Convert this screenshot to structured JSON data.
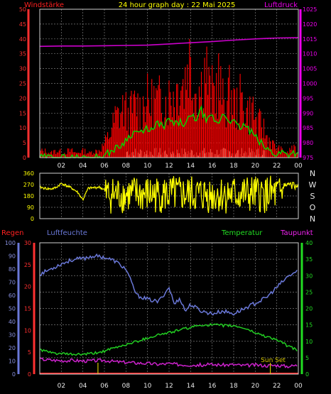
{
  "header": {
    "title": "24 hour graph day : 22 Mai 2025",
    "left_label": "Windstärke",
    "right_label": "Luftdruck"
  },
  "labels": {
    "regen": "Regen",
    "luftfeuchte": "Luftfeuchte",
    "temperatur": "Temperatur",
    "taupunkt": "Taupunkt",
    "sun_set": "Sun Set"
  },
  "colors": {
    "wind": "#ff0000",
    "gust_avg": "#00dd00",
    "wind_bg": "#c8f0c8",
    "pressure": "#cc00cc",
    "direction": "#ffff00",
    "humidity": "#6a78d8",
    "temperature": "#22cc22",
    "dewpoint": "#cc22cc",
    "rain": "#ff3030",
    "sunset": "#d4c400",
    "grid": "#7a7a7a",
    "title": "#ffff00"
  },
  "chart_data": [
    {
      "id": "wind-pressure",
      "type": "bar",
      "x_ticks": [
        "02",
        "04",
        "06",
        "08",
        "10",
        "12",
        "14",
        "16",
        "18",
        "20",
        "22",
        "00"
      ],
      "y_left_ticks": [
        "0",
        "5",
        "10",
        "15",
        "20",
        "25",
        "30",
        "35",
        "40",
        "45",
        "50"
      ],
      "y_left_range": [
        0,
        50
      ],
      "y_right_ticks": [
        "975",
        "980",
        "985",
        "990",
        "995",
        "1000",
        "1005",
        "1010",
        "1015",
        "1020",
        "1025"
      ],
      "y_right_range": [
        975,
        1025
      ],
      "series": [
        {
          "x": [
            0.2,
            0.6,
            1.0,
            1.4,
            1.8,
            2.2,
            2.6,
            3.0,
            3.4,
            3.8,
            4.2,
            4.6,
            5.0,
            5.4,
            5.8,
            6.2,
            6.6,
            7.0,
            7.4,
            7.8,
            8.2,
            8.6,
            9.0,
            9.4,
            9.8,
            10.2,
            10.6,
            11.0,
            11.4,
            11.8,
            12.2,
            12.6,
            13.0,
            13.4,
            13.8,
            14.2,
            14.6,
            15.0,
            15.4,
            15.8,
            16.2,
            16.6,
            17.0,
            17.4,
            17.8,
            18.2,
            18.6,
            19.0,
            19.4,
            19.8,
            20.2,
            20.6,
            21.0,
            21.4,
            21.8,
            22.2,
            22.6,
            23.0,
            23.4,
            23.8
          ],
          "values": [
            3,
            3,
            2,
            3,
            3,
            2,
            3,
            3,
            2,
            3,
            3,
            2,
            3,
            3,
            5,
            8,
            12,
            18,
            20,
            23,
            19,
            22,
            25,
            21,
            28,
            24,
            27,
            25,
            29,
            26,
            30,
            28,
            38,
            33,
            48,
            35,
            31,
            33,
            43,
            28,
            30,
            36,
            25,
            27,
            30,
            22,
            26,
            24,
            20,
            22,
            14,
            16,
            10,
            8,
            5,
            4,
            3,
            2,
            5,
            3
          ]
        },
        {
          "x": [
            0,
            1,
            2,
            3,
            4,
            5,
            6,
            6.5,
            7,
            7.5,
            8,
            8.5,
            9,
            9.5,
            10,
            10.5,
            11,
            11.5,
            12,
            12.5,
            13,
            13.5,
            14,
            14.5,
            15,
            15.5,
            16,
            16.5,
            17,
            17.5,
            18,
            18.5,
            19,
            19.5,
            20,
            20.5,
            21,
            21.5,
            22,
            22.5,
            23,
            23.5,
            24
          ],
          "values": [
            0,
            0,
            0,
            0,
            0,
            0,
            0.5,
            2,
            3,
            4,
            6,
            8,
            9,
            8,
            10,
            9,
            12,
            10,
            13,
            11,
            12,
            11,
            14,
            13,
            16,
            12,
            14,
            11,
            15,
            13,
            12,
            10,
            11,
            9,
            7,
            5,
            3,
            2,
            1,
            2,
            1,
            2,
            1
          ]
        },
        {
          "x": [
            0,
            2,
            4,
            6,
            8,
            10,
            12,
            14,
            16,
            18,
            20,
            22,
            24
          ],
          "values": [
            1012.5,
            1012.6,
            1012.6,
            1012.7,
            1012.8,
            1012.9,
            1013.3,
            1013.7,
            1014.1,
            1014.6,
            1015.0,
            1015.3,
            1015.4
          ]
        }
      ]
    },
    {
      "id": "wind-direction",
      "type": "line",
      "x_ticks": [
        "02",
        "04",
        "06",
        "08",
        "10",
        "12",
        "14",
        "16",
        "18",
        "20",
        "22",
        "00"
      ],
      "y_left_ticks": [
        "0",
        "90",
        "180",
        "270",
        "360"
      ],
      "y_range": [
        0,
        360
      ],
      "y_right_ticks": [
        "N",
        "W",
        "S",
        "O",
        "N"
      ],
      "series": [
        {
          "x": [
            0,
            0.5,
            1,
            1.5,
            2,
            2.5,
            3,
            3.5,
            4,
            4.5,
            5,
            5.5,
            6,
            24
          ],
          "values": [
            250,
            240,
            235,
            245,
            280,
            260,
            240,
            210,
            150,
            240,
            245,
            250,
            230,
            250
          ]
        }
      ]
    },
    {
      "id": "hum-temp",
      "type": "line",
      "x_ticks": [
        "02",
        "04",
        "06",
        "08",
        "10",
        "12",
        "14",
        "16",
        "18",
        "20",
        "22",
        "00"
      ],
      "y_hum_ticks": [
        "0",
        "10",
        "20",
        "30",
        "40",
        "50",
        "60",
        "70",
        "80",
        "90",
        "100"
      ],
      "y_hum_range": [
        0,
        100
      ],
      "y_rain_ticks": [
        "0",
        "5",
        "10",
        "15",
        "20",
        "25",
        "30"
      ],
      "y_rain_range": [
        0,
        30
      ],
      "y_temp_ticks": [
        "0",
        "5",
        "10",
        "15",
        "20",
        "25",
        "30",
        "35",
        "40"
      ],
      "y_temp_range": [
        0,
        40
      ],
      "series": [
        {
          "x": [
            0,
            1,
            2,
            3,
            4,
            5,
            6,
            7,
            8,
            9,
            10,
            11,
            12,
            12.5,
            13,
            13.5,
            14,
            15,
            16,
            17,
            18,
            19,
            20,
            21,
            22,
            23,
            24
          ],
          "values": [
            76,
            80,
            84,
            87,
            88,
            90,
            89,
            86,
            80,
            60,
            57,
            55,
            66,
            53,
            58,
            48,
            53,
            48,
            46,
            48,
            46,
            50,
            54,
            58,
            66,
            74,
            79
          ]
        },
        {
          "x": [
            0,
            1,
            2,
            3,
            4,
            5,
            6,
            7,
            8,
            9,
            10,
            11,
            12,
            13,
            14,
            15,
            16,
            17,
            18,
            19,
            20,
            21,
            22,
            23,
            24
          ],
          "values": [
            7.5,
            6.5,
            6.2,
            6.0,
            6.0,
            6.3,
            7.0,
            8.0,
            9.0,
            10.0,
            11.0,
            12.0,
            12.6,
            13.5,
            14.2,
            15.0,
            15.0,
            14.8,
            14.7,
            14.0,
            12.6,
            11.5,
            10.5,
            8.6,
            7.2
          ]
        },
        {
          "x": [
            0,
            1,
            2,
            3,
            4,
            5,
            6,
            7,
            8,
            9,
            10,
            11,
            12,
            13,
            14,
            15,
            16,
            17,
            18,
            19,
            20,
            21,
            22,
            23,
            24
          ],
          "values": [
            4.6,
            4.3,
            4.1,
            4.2,
            4.0,
            4.1,
            4.2,
            3.8,
            3.6,
            3.4,
            3.3,
            3.0,
            3.2,
            2.9,
            2.8,
            2.8,
            2.9,
            2.8,
            2.9,
            2.6,
            2.8,
            2.6,
            2.7,
            2.4,
            2.7
          ]
        }
      ],
      "sunset_hour": 21.4,
      "rain_total": 0
    }
  ]
}
